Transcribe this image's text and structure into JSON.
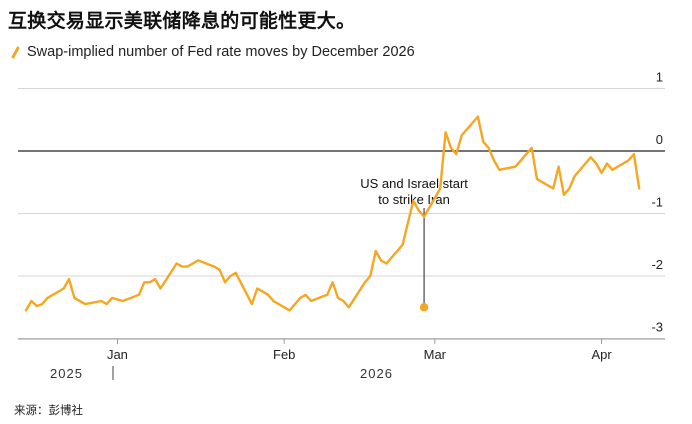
{
  "title": "互换交易显示美联储降息的可能性更大。",
  "source": "来源：彭博社",
  "colors": {
    "series": "#f5a623",
    "grid": "#d6d6d6",
    "zero_line": "#222222",
    "text": "#222222"
  },
  "chart_data": {
    "type": "line",
    "title": "互换交易显示美联储降息的可能性更大。",
    "xlabel": "",
    "ylabel": "",
    "ylim": [
      -3.2,
      1.1
    ],
    "y_ticks": [
      1,
      0,
      -1,
      -2,
      -3
    ],
    "y_tick_labels": [
      "1",
      "0",
      "-1",
      "-2",
      "-3"
    ],
    "x_tick_labels": [
      "Jan",
      "Feb",
      "Mar",
      "Apr"
    ],
    "year_labels": [
      "2025",
      "2026"
    ],
    "grid": true,
    "legend_position": "top-left",
    "series": [
      {
        "name": "Swap-implied number of Fed rate moves by December 2026",
        "x": [
          "2025-12-15",
          "2025-12-16",
          "2025-12-17",
          "2025-12-18",
          "2025-12-19",
          "2025-12-22",
          "2025-12-23",
          "2025-12-24",
          "2025-12-26",
          "2025-12-29",
          "2025-12-30",
          "2025-12-31",
          "2026-01-02",
          "2026-01-05",
          "2026-01-06",
          "2026-01-07",
          "2026-01-08",
          "2026-01-09",
          "2026-01-12",
          "2026-01-13",
          "2026-01-14",
          "2026-01-15",
          "2026-01-16",
          "2026-01-19",
          "2026-01-20",
          "2026-01-21",
          "2026-01-22",
          "2026-01-23",
          "2026-01-26",
          "2026-01-27",
          "2026-01-28",
          "2026-01-29",
          "2026-01-30",
          "2026-02-02",
          "2026-02-03",
          "2026-02-04",
          "2026-02-05",
          "2026-02-06",
          "2026-02-09",
          "2026-02-10",
          "2026-02-11",
          "2026-02-12",
          "2026-02-13",
          "2026-02-16",
          "2026-02-17",
          "2026-02-18",
          "2026-02-19",
          "2026-02-20",
          "2026-02-23",
          "2026-02-24",
          "2026-02-25",
          "2026-02-26",
          "2026-02-27",
          "2026-03-02",
          "2026-03-03",
          "2026-03-04",
          "2026-03-05",
          "2026-03-06",
          "2026-03-09",
          "2026-03-10",
          "2026-03-11",
          "2026-03-12",
          "2026-03-13",
          "2026-03-16",
          "2026-03-17",
          "2026-03-18",
          "2026-03-19",
          "2026-03-20",
          "2026-03-23",
          "2026-03-24",
          "2026-03-25",
          "2026-03-26",
          "2026-03-27",
          "2026-03-30",
          "2026-03-31",
          "2026-04-01",
          "2026-04-02",
          "2026-04-03",
          "2026-04-06",
          "2026-04-07",
          "2026-04-08"
        ],
        "values": [
          -2.55,
          -2.4,
          -2.48,
          -2.45,
          -2.35,
          -2.2,
          -2.05,
          -2.35,
          -2.45,
          -2.4,
          -2.45,
          -2.35,
          -2.4,
          -2.3,
          -2.1,
          -2.1,
          -2.05,
          -2.2,
          -1.8,
          -1.85,
          -1.85,
          -1.8,
          -1.75,
          -1.85,
          -1.9,
          -2.1,
          -2.0,
          -1.95,
          -2.45,
          -2.2,
          -2.25,
          -2.3,
          -2.4,
          -2.55,
          -2.45,
          -2.35,
          -2.3,
          -2.4,
          -2.3,
          -2.1,
          -2.35,
          -2.4,
          -2.5,
          -2.1,
          -2.0,
          -1.6,
          -1.75,
          -1.8,
          -1.5,
          -1.15,
          -0.8,
          -0.95,
          -1.05,
          -0.6,
          0.3,
          0.05,
          -0.05,
          0.25,
          0.55,
          0.15,
          0.05,
          -0.15,
          -0.3,
          -0.25,
          -0.15,
          -0.05,
          0.05,
          -0.45,
          -0.6,
          -0.25,
          -0.7,
          -0.6,
          -0.4,
          -0.1,
          -0.2,
          -0.35,
          -0.2,
          -0.3,
          -0.15,
          -0.05,
          -0.6
        ]
      }
    ],
    "annotation": {
      "date": "2026-02-27",
      "value": -2.5,
      "text_lines": [
        "US and Israel start",
        "to strike Iran"
      ]
    }
  }
}
